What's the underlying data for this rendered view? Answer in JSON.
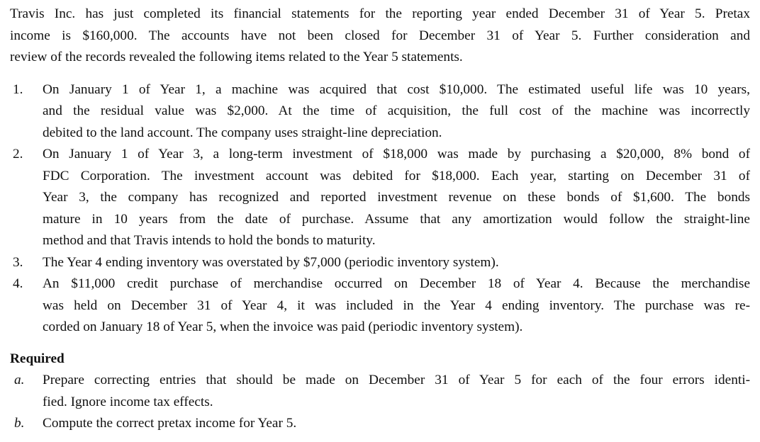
{
  "intro": [
    "Travis Inc. has just completed its financial statements for the reporting year ended December 31 of Year 5. Pretax",
    "income is $160,000. The accounts have not been closed for December 31 of Year 5. Further consideration and",
    "review of the records revealed the following items related to the Year 5 statements."
  ],
  "items": [
    {
      "marker": "1.",
      "lines": [
        "On January 1 of Year 1, a machine was acquired that cost $10,000. The estimated useful life was 10 years,",
        "and the residual value was $2,000. At the time of acquisition, the full cost of the machine was incorrectly",
        "debited to the land account. The company uses straight-line depreciation."
      ]
    },
    {
      "marker": "2.",
      "lines": [
        "On January 1 of Year 3, a long-term investment of $18,000 was made by purchasing a $20,000, 8% bond of",
        "FDC Corporation. The investment account was debited for $18,000. Each year, starting on December 31 of",
        "Year 3, the company has recognized and reported investment revenue on these bonds of $1,600. The bonds",
        "mature in 10 years from the date of purchase. Assume that any amortization would follow the straight-line",
        "method and that Travis intends to hold the bonds to maturity."
      ]
    },
    {
      "marker": "3.",
      "lines": [
        "The Year 4 ending inventory was overstated by $7,000 (periodic inventory system)."
      ]
    },
    {
      "marker": "4.",
      "lines": [
        "An $11,000 credit purchase of merchandise occurred on December 18 of Year 4. Because the merchandise",
        "was held on December 31 of Year 4, it was included in the Year 4 ending inventory. The purchase was re-",
        "corded on January 18 of Year 5, when the invoice was paid (periodic inventory system)."
      ]
    }
  ],
  "required": {
    "heading": "Required",
    "items": [
      {
        "marker": "a.",
        "lines": [
          "Prepare correcting entries that should be made on December 31 of Year 5 for each of the four errors identi-",
          "fied. Ignore income tax effects."
        ]
      },
      {
        "marker": "b.",
        "lines": [
          "Compute the correct pretax income for Year 5."
        ]
      }
    ]
  }
}
